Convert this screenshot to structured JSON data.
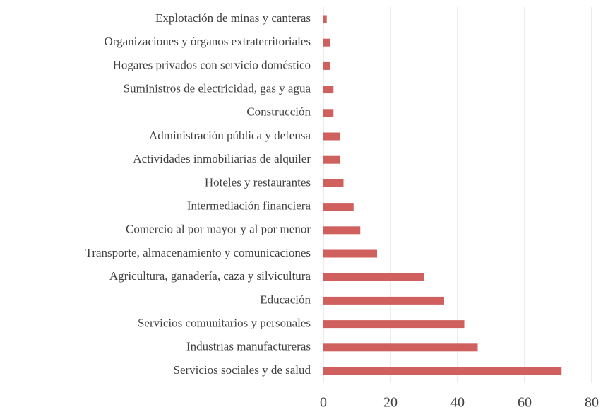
{
  "chart_data": {
    "type": "hbar",
    "categories": [
      "Explotación de minas y canteras",
      "Organizaciones y órganos extraterritoriales",
      "Hogares privados con servicio doméstico",
      "Suministros de electricidad, gas y agua",
      "Construcción",
      "Administración pública y defensa",
      "Actividades inmobiliarias de alquiler",
      "Hoteles y restaurantes",
      "Intermediación financiera",
      "Comercio al por mayor y al por menor",
      "Transporte, almacenamiento y comunicaciones",
      "Agricultura, ganadería, caza y silvicultura",
      "Educación",
      "Servicios comunitarios y personales",
      "Industrias manufactureras",
      "Servicios sociales y de salud"
    ],
    "values": [
      1,
      2,
      2,
      3,
      3,
      5,
      5,
      6,
      9,
      11,
      16,
      30,
      36,
      42,
      46,
      71
    ],
    "color": "#d0605e",
    "xlim": [
      0,
      80
    ],
    "xticks": [
      0,
      20,
      40,
      60,
      80
    ],
    "grid": true
  }
}
